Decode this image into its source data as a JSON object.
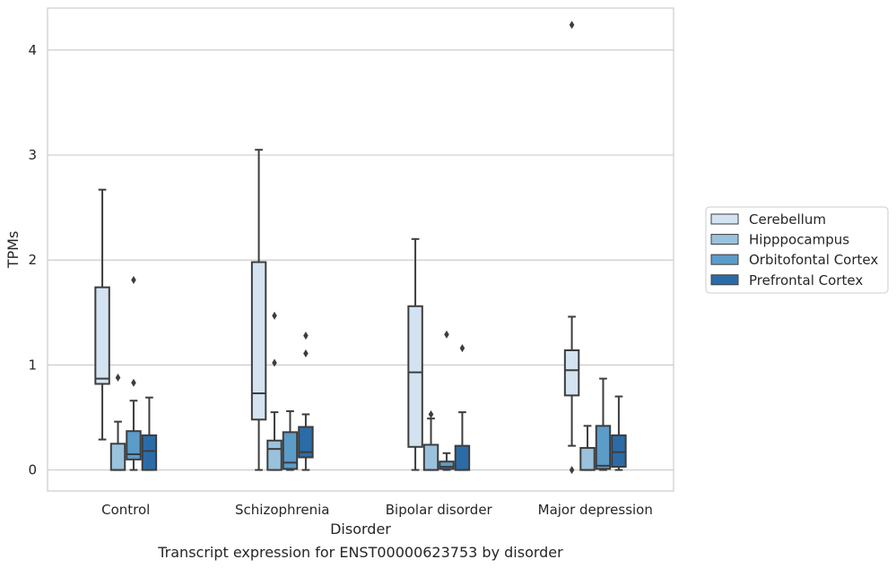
{
  "chart_data": {
    "type": "boxplot",
    "title": "Transcript expression for ENST00000623753 by disorder",
    "xlabel": "Disorder",
    "ylabel": "TPMs",
    "ylim": [
      -0.2,
      4.4
    ],
    "yticks": [
      0,
      1,
      2,
      3,
      4
    ],
    "grid": true,
    "legend_position": "right",
    "categories": [
      "Control",
      "Schizophrenia",
      "Bipolar disorder",
      "Major depression"
    ],
    "series": [
      {
        "name": "Cerebellum",
        "color": "#d4e3f1",
        "boxes": [
          {
            "q1": 0.82,
            "median": 0.87,
            "q3": 1.74,
            "whisker_low": 0.29,
            "whisker_high": 2.67,
            "outliers": []
          },
          {
            "q1": 0.48,
            "median": 0.73,
            "q3": 1.98,
            "whisker_low": 0.0,
            "whisker_high": 3.05,
            "outliers": []
          },
          {
            "q1": 0.22,
            "median": 0.93,
            "q3": 1.56,
            "whisker_low": 0.0,
            "whisker_high": 2.2,
            "outliers": []
          },
          {
            "q1": 0.71,
            "median": 0.95,
            "q3": 1.14,
            "whisker_low": 0.23,
            "whisker_high": 1.46,
            "outliers": [
              4.24,
              0.0
            ]
          }
        ]
      },
      {
        "name": "Hipppocampus",
        "color": "#9ac2dd",
        "boxes": [
          {
            "q1": 0.0,
            "median": 0.0,
            "q3": 0.25,
            "whisker_low": 0.0,
            "whisker_high": 0.46,
            "outliers": [
              0.88
            ]
          },
          {
            "q1": 0.0,
            "median": 0.2,
            "q3": 0.28,
            "whisker_low": 0.0,
            "whisker_high": 0.55,
            "outliers": [
              1.47,
              1.02
            ]
          },
          {
            "q1": 0.0,
            "median": 0.0,
            "q3": 0.24,
            "whisker_low": 0.0,
            "whisker_high": 0.49,
            "outliers": [
              0.53
            ]
          },
          {
            "q1": 0.0,
            "median": 0.0,
            "q3": 0.21,
            "whisker_low": 0.0,
            "whisker_high": 0.42,
            "outliers": []
          }
        ]
      },
      {
        "name": "Orbitofontal Cortex",
        "color": "#5b9cc9",
        "boxes": [
          {
            "q1": 0.1,
            "median": 0.15,
            "q3": 0.37,
            "whisker_low": 0.0,
            "whisker_high": 0.66,
            "outliers": [
              1.81,
              0.83
            ]
          },
          {
            "q1": 0.01,
            "median": 0.07,
            "q3": 0.36,
            "whisker_low": 0.0,
            "whisker_high": 0.56,
            "outliers": []
          },
          {
            "q1": 0.01,
            "median": 0.03,
            "q3": 0.08,
            "whisker_low": 0.0,
            "whisker_high": 0.16,
            "outliers": [
              1.29
            ]
          },
          {
            "q1": 0.01,
            "median": 0.04,
            "q3": 0.42,
            "whisker_low": 0.0,
            "whisker_high": 0.87,
            "outliers": []
          }
        ]
      },
      {
        "name": "Prefrontal Cortex",
        "color": "#2b6ca8",
        "boxes": [
          {
            "q1": 0.0,
            "median": 0.18,
            "q3": 0.33,
            "whisker_low": 0.0,
            "whisker_high": 0.69,
            "outliers": []
          },
          {
            "q1": 0.12,
            "median": 0.17,
            "q3": 0.41,
            "whisker_low": 0.0,
            "whisker_high": 0.53,
            "outliers": [
              1.28,
              1.11
            ]
          },
          {
            "q1": 0.0,
            "median": 0.0,
            "q3": 0.23,
            "whisker_low": 0.0,
            "whisker_high": 0.55,
            "outliers": [
              1.16
            ]
          },
          {
            "q1": 0.03,
            "median": 0.17,
            "q3": 0.33,
            "whisker_low": 0.0,
            "whisker_high": 0.7,
            "outliers": []
          }
        ]
      }
    ]
  }
}
